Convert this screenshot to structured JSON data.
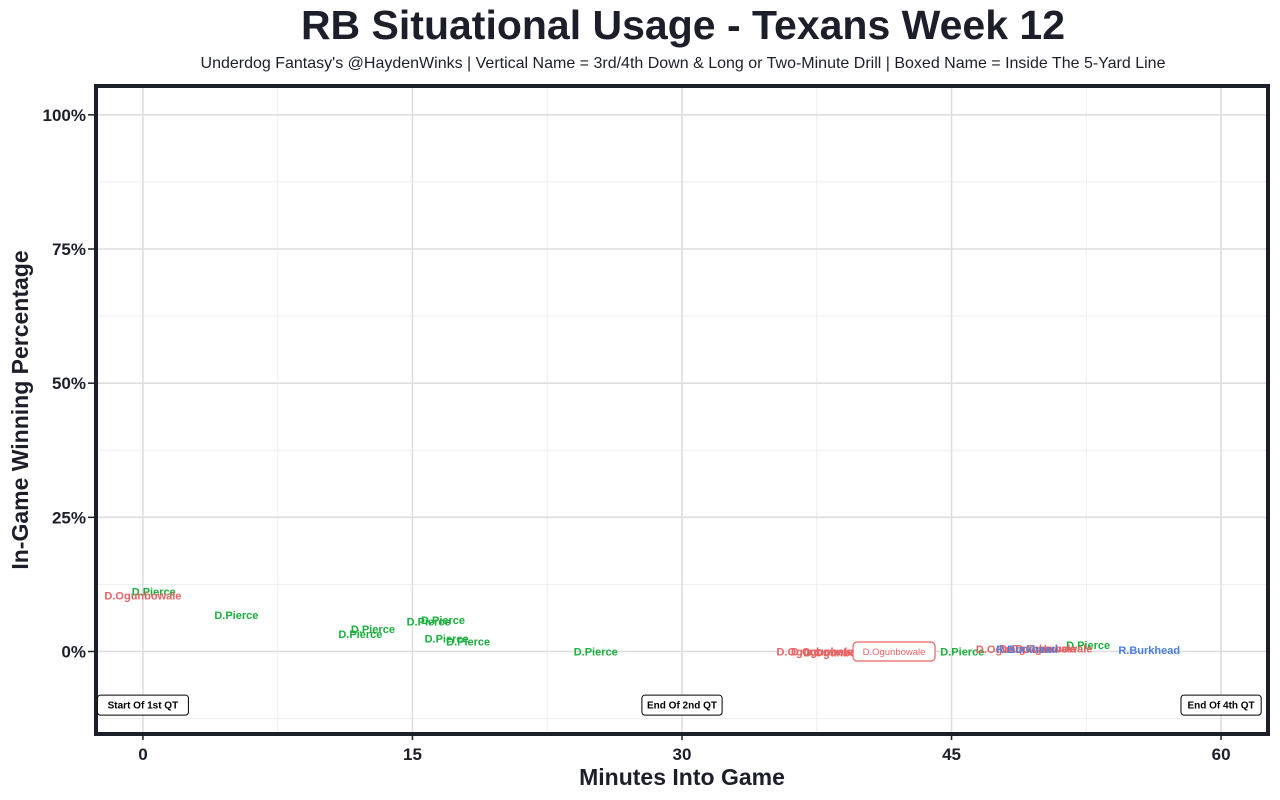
{
  "chart_data": {
    "type": "scatter",
    "title": "RB Situational Usage - Texans Week 12",
    "subtitle": "Underdog Fantasy's @HaydenWinks | Vertical Name = 3rd/4th Down & Long or Two-Minute Drill | Boxed Name = Inside The 5-Yard Line",
    "xlabel": "Minutes Into Game",
    "ylabel": "In-Game Winning Percentage",
    "xlim": [
      -2.5,
      62.5
    ],
    "ylim": [
      -15,
      105
    ],
    "x_ticks": [
      0,
      15,
      30,
      45,
      60
    ],
    "x_tick_labels": [
      "0",
      "15",
      "30",
      "45",
      "60"
    ],
    "y_ticks": [
      0,
      25,
      50,
      75,
      100
    ],
    "y_tick_labels": [
      "0%",
      "25%",
      "50%",
      "75%",
      "100%"
    ],
    "grid": true,
    "series": [
      {
        "name": "D.Pierce",
        "color": "#1aaf3c",
        "points": [
          {
            "x": 0.6,
            "y": 11.2
          },
          {
            "x": 5.2,
            "y": 6.8
          },
          {
            "x": 12.8,
            "y": 4.2
          },
          {
            "x": 12.1,
            "y": 3.3
          },
          {
            "x": 16.7,
            "y": 5.9
          },
          {
            "x": 15.9,
            "y": 5.6
          },
          {
            "x": 16.9,
            "y": 2.4
          },
          {
            "x": 18.1,
            "y": 1.9
          },
          {
            "x": 25.2,
            "y": 0.0
          },
          {
            "x": 45.6,
            "y": 0.0
          },
          {
            "x": 52.6,
            "y": 1.2
          }
        ]
      },
      {
        "name": "D.Ogunbowale",
        "color": "#e86363",
        "points": [
          {
            "x": 0.0,
            "y": 10.4
          },
          {
            "x": 37.4,
            "y": 0.0
          },
          {
            "x": 38.2,
            "y": 0.0
          },
          {
            "x": 38.9,
            "y": -0.2
          },
          {
            "x": 48.5,
            "y": 0.5
          },
          {
            "x": 49.8,
            "y": 0.6
          },
          {
            "x": 50.7,
            "y": 0.6
          }
        ]
      },
      {
        "name": "R.Burkhead",
        "color": "#4a7fe0",
        "points": [
          {
            "x": 49.2,
            "y": 0.5
          },
          {
            "x": 56.0,
            "y": 0.3
          }
        ]
      }
    ],
    "boxed_points": [
      {
        "series": "D.Ogunbowale",
        "x": 41.8,
        "y": 0.0
      }
    ],
    "annotations": [
      {
        "label": "Start Of 1st QT",
        "x": 0,
        "y": -10
      },
      {
        "label": "End Of 2nd QT",
        "x": 30,
        "y": -10
      },
      {
        "label": "End Of 4th QT",
        "x": 60,
        "y": -10
      }
    ]
  }
}
